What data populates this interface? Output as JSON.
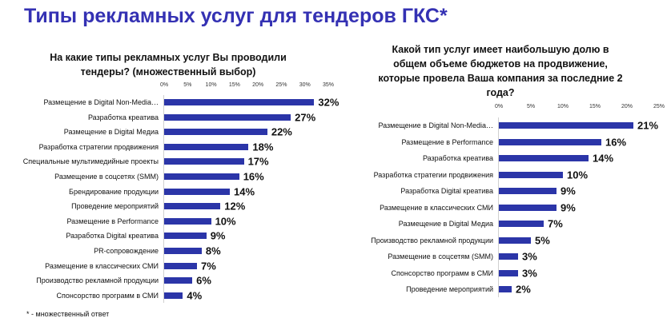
{
  "title": "Типы рекламных услуг для тендеров ГКС*",
  "footnote": "* - множественный ответ",
  "colors": {
    "bar": "#2b35a8",
    "title": "#3431b3"
  },
  "chart_data": [
    {
      "type": "bar",
      "orientation": "horizontal",
      "title_lines": [
        "На какие типы рекламных услуг Вы проводили",
        "тендеры? (множественный выбор)"
      ],
      "xlim": [
        0,
        35
      ],
      "ticks": [
        "0%",
        "5%",
        "10%",
        "15%",
        "20%",
        "25%",
        "30%",
        "35%"
      ],
      "categories": [
        "Размещение в Digital Non-Media…",
        "Разработка креатива",
        "Размещение в Digital Медиа",
        "Разработка стратегии продвижения",
        "Специальные мультимедийные проекты",
        "Размещение в соцсетях (SMM)",
        "Брендирование продукции",
        "Проведение мероприятий",
        "Размещение в Performance",
        "Разработка Digital креатива",
        "PR-сопровождение",
        "Размещение в классических СМИ",
        "Производство рекламной продукции",
        "Спонсорство программ в СМИ"
      ],
      "values": [
        32,
        27,
        22,
        18,
        17,
        16,
        14,
        12,
        10,
        9,
        8,
        7,
        6,
        4
      ],
      "labels": [
        "32%",
        "27%",
        "22%",
        "18%",
        "17%",
        "16%",
        "14%",
        "12%",
        "10%",
        "9%",
        "8%",
        "7%",
        "6%",
        "4%"
      ]
    },
    {
      "type": "bar",
      "orientation": "horizontal",
      "title_lines": [
        "Какой тип услуг имеет наибольшую долю в",
        "общем объеме бюджетов на продвижение,",
        "которые провела Ваша компания за последние 2",
        "года?"
      ],
      "xlim": [
        0,
        25
      ],
      "ticks": [
        "0%",
        "5%",
        "10%",
        "15%",
        "20%",
        "25%"
      ],
      "categories": [
        "Размещение в Digital Non-Media…",
        "Размещение в Performance",
        "Разработка креатива",
        "Разработка стратегии продвижения",
        "Разработка Digital креатива",
        "Размещение в классических СМИ",
        "Размещение в Digital Медиа",
        "Производство рекламной продукции",
        "Размещение в соцсетям (SMM)",
        "Спонсорство программ в СМИ",
        "Проведение мероприятий"
      ],
      "values": [
        21,
        16,
        14,
        10,
        9,
        9,
        7,
        5,
        3,
        3,
        2
      ],
      "labels": [
        "21%",
        "16%",
        "14%",
        "10%",
        "9%",
        "9%",
        "7%",
        "5%",
        "3%",
        "3%",
        "2%"
      ]
    }
  ]
}
